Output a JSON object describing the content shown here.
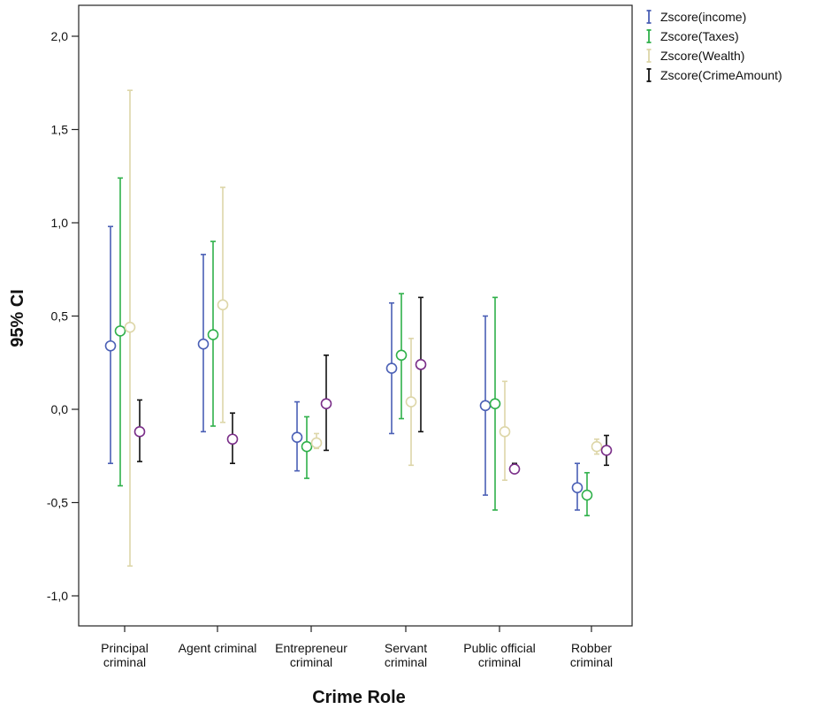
{
  "chart_data": {
    "type": "errorbar",
    "title": "",
    "xlabel": "Crime Role",
    "ylabel": "95% CI",
    "ylim": [
      -1.15,
      2.2
    ],
    "yticks": [
      "2,0",
      "1,5",
      "1,0",
      "0,5",
      "0,0",
      "-0,5",
      "-1,0"
    ],
    "ytick_values": [
      2.0,
      1.5,
      1.0,
      0.5,
      0.0,
      -0.5,
      -1.0
    ],
    "categories": [
      [
        "Principal",
        "criminal"
      ],
      [
        "Agent criminal"
      ],
      [
        "Entrepreneur",
        "criminal"
      ],
      [
        "Servant",
        "criminal"
      ],
      [
        "Public official",
        "criminal"
      ],
      [
        "Robber",
        "criminal"
      ]
    ],
    "legend_position": "top-right-outside",
    "grid": false,
    "series": [
      {
        "name": "Zscore(income)",
        "color": "#4a5fb5",
        "mean": [
          0.34,
          0.35,
          -0.15,
          0.22,
          0.02,
          -0.42
        ],
        "lower": [
          -0.29,
          -0.12,
          -0.33,
          -0.13,
          -0.46,
          -0.54
        ],
        "upper": [
          0.98,
          0.83,
          0.04,
          0.57,
          0.5,
          -0.29
        ]
      },
      {
        "name": "Zscore(Taxes)",
        "color": "#2fb04a",
        "mean": [
          0.42,
          0.4,
          -0.2,
          0.29,
          0.03,
          -0.46
        ],
        "lower": [
          -0.41,
          -0.09,
          -0.37,
          -0.05,
          -0.54,
          -0.57
        ],
        "upper": [
          1.24,
          0.9,
          -0.04,
          0.62,
          0.6,
          -0.34
        ]
      },
      {
        "name": "Zscore(Wealth)",
        "color": "#ddd6a8",
        "mean": [
          0.44,
          0.56,
          -0.18,
          0.04,
          -0.12,
          -0.2
        ],
        "lower": [
          -0.84,
          -0.07,
          -0.21,
          -0.3,
          -0.38,
          -0.24
        ],
        "upper": [
          1.71,
          1.19,
          -0.13,
          0.38,
          0.15,
          -0.16
        ]
      },
      {
        "name": "Zscore(CrimeAmount)",
        "color": "#111111",
        "marker_color": "#7a2e88",
        "mean": [
          -0.12,
          -0.16,
          0.03,
          0.24,
          -0.32,
          -0.22
        ],
        "lower": [
          -0.28,
          -0.29,
          -0.22,
          -0.12,
          -0.34,
          -0.3
        ],
        "upper": [
          0.05,
          -0.02,
          0.29,
          0.6,
          -0.29,
          -0.14
        ]
      }
    ]
  }
}
